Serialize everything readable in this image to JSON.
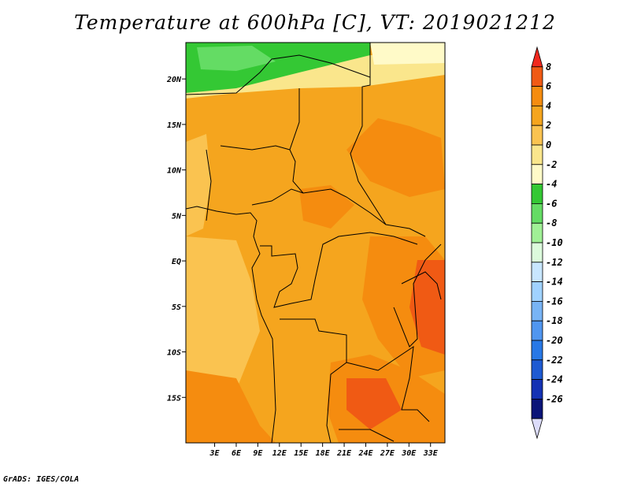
{
  "title": "Temperature at 600hPa [C], VT: 2019021212",
  "credit": "GrADS: IGES/COLA",
  "map": {
    "lon_range": [
      -1,
      35
    ],
    "lat_range": [
      -20,
      24
    ],
    "lat_ticks": [
      {
        "value": 20,
        "label": "20N"
      },
      {
        "value": 15,
        "label": "15N"
      },
      {
        "value": 10,
        "label": "10N"
      },
      {
        "value": 5,
        "label": "5N"
      },
      {
        "value": 0,
        "label": "EQ"
      },
      {
        "value": -5,
        "label": "5S"
      },
      {
        "value": -10,
        "label": "10S"
      },
      {
        "value": -15,
        "label": "15S"
      }
    ],
    "lon_ticks": [
      {
        "value": 3,
        "label": "3E"
      },
      {
        "value": 6,
        "label": "6E"
      },
      {
        "value": 9,
        "label": "9E"
      },
      {
        "value": 12,
        "label": "12E"
      },
      {
        "value": 15,
        "label": "15E"
      },
      {
        "value": 18,
        "label": "18E"
      },
      {
        "value": 21,
        "label": "21E"
      },
      {
        "value": 24,
        "label": "24E"
      },
      {
        "value": 27,
        "label": "27E"
      },
      {
        "value": 30,
        "label": "30E"
      },
      {
        "value": 33,
        "label": "33E"
      }
    ]
  },
  "colorbar": {
    "labels": [
      "8",
      "6",
      "4",
      "2",
      "0",
      "-2",
      "-4",
      "-6",
      "-8",
      "-10",
      "-12",
      "-14",
      "-16",
      "-18",
      "-20",
      "-22",
      "-24",
      "-26"
    ],
    "colors": [
      "#f0281e",
      "#f05a14",
      "#f58c0f",
      "#f5a51e",
      "#fac350",
      "#fae68c",
      "#fffac8",
      "#34c834",
      "#64dc64",
      "#a0f096",
      "#dcfadc",
      "#c8e6ff",
      "#a0d2ff",
      "#78b4f5",
      "#5096f0",
      "#2878e6",
      "#1e5ad2",
      "#1432b4",
      "#0a1478",
      "#dcdcfa"
    ]
  }
}
